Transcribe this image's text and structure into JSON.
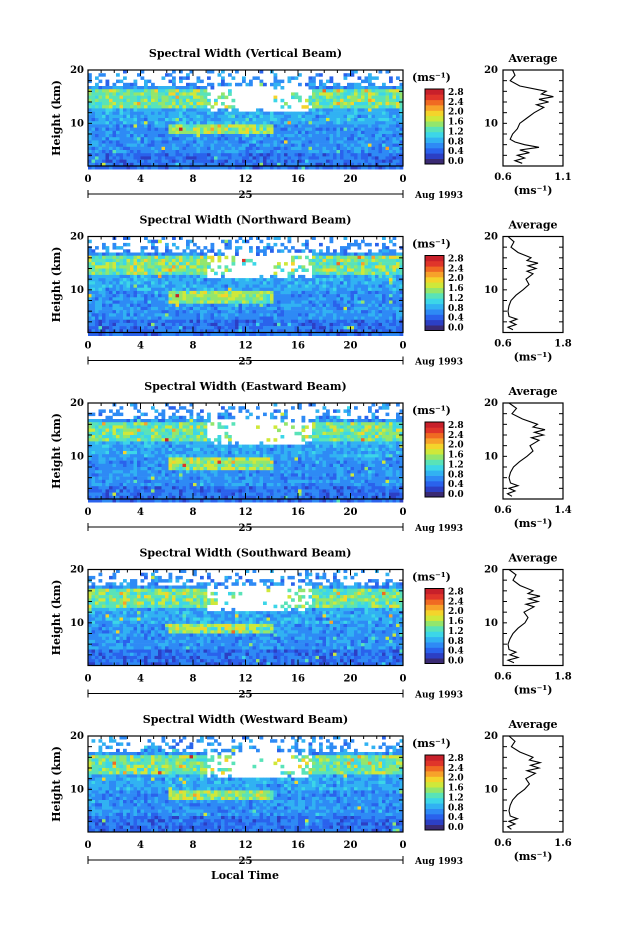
{
  "page": {
    "background": "#ffffff",
    "bottom_xlabel": "Local Time"
  },
  "colorbar": {
    "unit": "(ms⁻¹)",
    "ticks": [
      "0.0",
      "0.4",
      "0.8",
      "1.2",
      "1.6",
      "2.0",
      "2.4",
      "2.8"
    ],
    "colors": [
      "#3a2a73",
      "#2c3fc4",
      "#2a62ec",
      "#2e8af5",
      "#31b2f2",
      "#3cd6e8",
      "#59e3b8",
      "#93e66c",
      "#cfe83a",
      "#f4d42b",
      "#f7a22a",
      "#f06a22",
      "#e0352a",
      "#c8202a"
    ]
  },
  "chart_data": [
    {
      "type": "heatmap",
      "title": "Spectral Width (Vertical Beam)",
      "xlabel": "",
      "ylabel": "Height (km)",
      "x_ticks": [
        "0",
        "4",
        "8",
        "12",
        "16",
        "20",
        "0"
      ],
      "xlim": [
        0,
        24
      ],
      "ylim": [
        2,
        20
      ],
      "y_ticks": [
        "10",
        "20"
      ],
      "date_marker": "25",
      "date_label": "Aug 1993",
      "zlim": [
        0.0,
        2.8
      ],
      "average": {
        "title": "Average",
        "xlabel": "(ms⁻¹)",
        "x_ticks": [
          "0.6",
          "1.1"
        ],
        "xlim": [
          0.6,
          1.1
        ],
        "profile": [
          {
            "h": 2.5,
            "v": 0.76
          },
          {
            "h": 3.0,
            "v": 0.7
          },
          {
            "h": 3.5,
            "v": 0.78
          },
          {
            "h": 4.0,
            "v": 0.72
          },
          {
            "h": 4.5,
            "v": 0.82
          },
          {
            "h": 5.0,
            "v": 0.74
          },
          {
            "h": 5.5,
            "v": 0.9
          },
          {
            "h": 6.0,
            "v": 0.78
          },
          {
            "h": 6.5,
            "v": 0.7
          },
          {
            "h": 7.0,
            "v": 0.66
          },
          {
            "h": 8.0,
            "v": 0.68
          },
          {
            "h": 9.0,
            "v": 0.72
          },
          {
            "h": 10.0,
            "v": 0.74
          },
          {
            "h": 11.0,
            "v": 0.8
          },
          {
            "h": 12.0,
            "v": 0.86
          },
          {
            "h": 13.0,
            "v": 0.94
          },
          {
            "h": 13.5,
            "v": 0.88
          },
          {
            "h": 14.0,
            "v": 0.98
          },
          {
            "h": 14.5,
            "v": 0.9
          },
          {
            "h": 15.0,
            "v": 1.02
          },
          {
            "h": 15.5,
            "v": 0.92
          },
          {
            "h": 16.0,
            "v": 0.96
          },
          {
            "h": 17.0,
            "v": 0.74
          },
          {
            "h": 18.0,
            "v": 0.66
          },
          {
            "h": 19.0,
            "v": 0.7
          },
          {
            "h": 20.0,
            "v": 0.68
          }
        ]
      }
    },
    {
      "type": "heatmap",
      "title": "Spectral Width (Northward Beam)",
      "xlabel": "",
      "ylabel": "Height (km)",
      "x_ticks": [
        "0",
        "4",
        "8",
        "12",
        "16",
        "20",
        "0"
      ],
      "xlim": [
        0,
        24
      ],
      "ylim": [
        2,
        20
      ],
      "y_ticks": [
        "10",
        "20"
      ],
      "date_marker": "25",
      "date_label": "Aug 1993",
      "zlim": [
        0.0,
        2.8
      ],
      "average": {
        "title": "Average",
        "xlabel": "(ms⁻¹)",
        "x_ticks": [
          "0.6",
          "1.8"
        ],
        "xlim": [
          0.6,
          1.8
        ],
        "profile": [
          {
            "h": 2.5,
            "v": 0.8
          },
          {
            "h": 3.0,
            "v": 0.7
          },
          {
            "h": 3.5,
            "v": 0.86
          },
          {
            "h": 4.0,
            "v": 0.74
          },
          {
            "h": 4.5,
            "v": 0.88
          },
          {
            "h": 5.0,
            "v": 0.72
          },
          {
            "h": 6.0,
            "v": 0.7
          },
          {
            "h": 7.0,
            "v": 0.72
          },
          {
            "h": 8.0,
            "v": 0.76
          },
          {
            "h": 9.0,
            "v": 0.86
          },
          {
            "h": 10.0,
            "v": 1.0
          },
          {
            "h": 11.0,
            "v": 1.12
          },
          {
            "h": 12.0,
            "v": 1.06
          },
          {
            "h": 13.0,
            "v": 1.2
          },
          {
            "h": 13.5,
            "v": 1.08
          },
          {
            "h": 14.0,
            "v": 1.26
          },
          {
            "h": 14.5,
            "v": 1.1
          },
          {
            "h": 15.0,
            "v": 1.3
          },
          {
            "h": 15.5,
            "v": 1.08
          },
          {
            "h": 16.0,
            "v": 1.16
          },
          {
            "h": 17.0,
            "v": 0.9
          },
          {
            "h": 18.0,
            "v": 0.76
          },
          {
            "h": 19.0,
            "v": 0.82
          },
          {
            "h": 20.0,
            "v": 0.7
          }
        ]
      }
    },
    {
      "type": "heatmap",
      "title": "Spectral Width (Eastward Beam)",
      "xlabel": "",
      "ylabel": "Height (km)",
      "x_ticks": [
        "0",
        "4",
        "8",
        "12",
        "16",
        "20",
        "0"
      ],
      "xlim": [
        0,
        24
      ],
      "ylim": [
        2,
        20
      ],
      "y_ticks": [
        "10",
        "20"
      ],
      "date_marker": "25",
      "date_label": "Aug 1993",
      "zlim": [
        0.0,
        2.8
      ],
      "average": {
        "title": "Average",
        "xlabel": "(ms⁻¹)",
        "x_ticks": [
          "0.6",
          "1.4"
        ],
        "xlim": [
          0.6,
          1.4
        ],
        "profile": [
          {
            "h": 2.5,
            "v": 0.72
          },
          {
            "h": 3.0,
            "v": 0.66
          },
          {
            "h": 3.5,
            "v": 0.76
          },
          {
            "h": 4.0,
            "v": 0.68
          },
          {
            "h": 4.5,
            "v": 0.8
          },
          {
            "h": 5.0,
            "v": 0.7
          },
          {
            "h": 6.0,
            "v": 0.68
          },
          {
            "h": 7.0,
            "v": 0.7
          },
          {
            "h": 8.0,
            "v": 0.74
          },
          {
            "h": 9.0,
            "v": 0.82
          },
          {
            "h": 10.0,
            "v": 0.92
          },
          {
            "h": 11.0,
            "v": 1.0
          },
          {
            "h": 12.0,
            "v": 0.96
          },
          {
            "h": 13.0,
            "v": 1.08
          },
          {
            "h": 13.5,
            "v": 0.98
          },
          {
            "h": 14.0,
            "v": 1.14
          },
          {
            "h": 14.5,
            "v": 1.02
          },
          {
            "h": 15.0,
            "v": 1.16
          },
          {
            "h": 15.5,
            "v": 1.0
          },
          {
            "h": 16.0,
            "v": 1.06
          },
          {
            "h": 17.0,
            "v": 0.86
          },
          {
            "h": 18.0,
            "v": 0.72
          },
          {
            "h": 19.0,
            "v": 0.78
          },
          {
            "h": 20.0,
            "v": 0.68
          }
        ]
      }
    },
    {
      "type": "heatmap",
      "title": "Spectral Width (Southward Beam)",
      "xlabel": "",
      "ylabel": "Height (km)",
      "x_ticks": [
        "0",
        "4",
        "8",
        "12",
        "16",
        "20",
        "0"
      ],
      "xlim": [
        0,
        24
      ],
      "ylim": [
        2,
        20
      ],
      "y_ticks": [
        "10",
        "20"
      ],
      "date_marker": "25",
      "date_label": "Aug 1993",
      "zlim": [
        0.0,
        2.8
      ],
      "average": {
        "title": "Average",
        "xlabel": "(ms⁻¹)",
        "x_ticks": [
          "0.6",
          "1.8"
        ],
        "xlim": [
          0.6,
          1.8
        ],
        "profile": [
          {
            "h": 2.5,
            "v": 0.82
          },
          {
            "h": 3.0,
            "v": 0.7
          },
          {
            "h": 3.5,
            "v": 0.9
          },
          {
            "h": 4.0,
            "v": 0.74
          },
          {
            "h": 4.5,
            "v": 0.86
          },
          {
            "h": 5.0,
            "v": 0.72
          },
          {
            "h": 6.0,
            "v": 0.7
          },
          {
            "h": 7.0,
            "v": 0.74
          },
          {
            "h": 8.0,
            "v": 0.8
          },
          {
            "h": 9.0,
            "v": 0.9
          },
          {
            "h": 10.0,
            "v": 1.04
          },
          {
            "h": 11.0,
            "v": 1.1
          },
          {
            "h": 12.0,
            "v": 1.02
          },
          {
            "h": 13.0,
            "v": 1.22
          },
          {
            "h": 13.5,
            "v": 1.06
          },
          {
            "h": 14.0,
            "v": 1.3
          },
          {
            "h": 14.5,
            "v": 1.12
          },
          {
            "h": 15.0,
            "v": 1.34
          },
          {
            "h": 15.5,
            "v": 1.1
          },
          {
            "h": 16.0,
            "v": 1.2
          },
          {
            "h": 17.0,
            "v": 0.94
          },
          {
            "h": 18.0,
            "v": 0.8
          },
          {
            "h": 19.0,
            "v": 0.86
          },
          {
            "h": 20.0,
            "v": 0.72
          }
        ]
      }
    },
    {
      "type": "heatmap",
      "title": "Spectral Width (Westward Beam)",
      "xlabel": "Local Time",
      "ylabel": "Height (km)",
      "x_ticks": [
        "0",
        "4",
        "8",
        "12",
        "16",
        "20",
        "0"
      ],
      "xlim": [
        0,
        24
      ],
      "ylim": [
        2,
        20
      ],
      "y_ticks": [
        "10",
        "20"
      ],
      "date_marker": "25",
      "date_label": "Aug 1993",
      "zlim": [
        0.0,
        2.8
      ],
      "average": {
        "title": "Average",
        "xlabel": "(ms⁻¹)",
        "x_ticks": [
          "0.6",
          "1.6"
        ],
        "xlim": [
          0.6,
          1.6
        ],
        "profile": [
          {
            "h": 2.5,
            "v": 0.74
          },
          {
            "h": 3.0,
            "v": 0.68
          },
          {
            "h": 3.5,
            "v": 0.8
          },
          {
            "h": 4.0,
            "v": 0.7
          },
          {
            "h": 4.5,
            "v": 0.84
          },
          {
            "h": 5.0,
            "v": 0.72
          },
          {
            "h": 6.0,
            "v": 0.7
          },
          {
            "h": 7.0,
            "v": 0.72
          },
          {
            "h": 8.0,
            "v": 0.76
          },
          {
            "h": 9.0,
            "v": 0.84
          },
          {
            "h": 10.0,
            "v": 0.96
          },
          {
            "h": 11.0,
            "v": 1.04
          },
          {
            "h": 12.0,
            "v": 0.98
          },
          {
            "h": 13.0,
            "v": 1.14
          },
          {
            "h": 13.5,
            "v": 1.0
          },
          {
            "h": 14.0,
            "v": 1.2
          },
          {
            "h": 14.5,
            "v": 1.06
          },
          {
            "h": 15.0,
            "v": 1.22
          },
          {
            "h": 15.5,
            "v": 1.04
          },
          {
            "h": 16.0,
            "v": 1.1
          },
          {
            "h": 17.0,
            "v": 0.88
          },
          {
            "h": 18.0,
            "v": 0.74
          },
          {
            "h": 19.0,
            "v": 0.8
          },
          {
            "h": 20.0,
            "v": 0.7
          }
        ]
      }
    }
  ]
}
